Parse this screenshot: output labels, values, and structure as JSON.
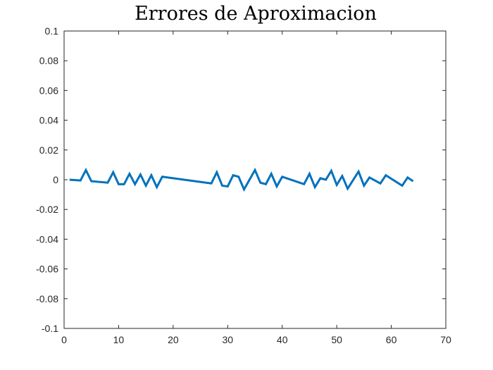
{
  "chart_data": {
    "type": "line",
    "title": "Errores de Aproximacion",
    "xlabel": "",
    "ylabel": "",
    "xlim": [
      0,
      70
    ],
    "ylim": [
      -0.1,
      0.1
    ],
    "x_ticks": [
      0,
      10,
      20,
      30,
      40,
      50,
      60,
      70
    ],
    "y_ticks": [
      0.1,
      0.08,
      0.06,
      0.04,
      0.02,
      0,
      -0.02,
      -0.04,
      -0.06,
      -0.08,
      -0.1
    ],
    "y_tick_labels": [
      "0.1",
      "0.08",
      "0.06",
      "0.04",
      "0.02",
      "0",
      "-0.02",
      "-0.04",
      "-0.06",
      "-0.08",
      "-0.1"
    ],
    "grid": false,
    "series": [
      {
        "color": "#0072BD",
        "points": [
          [
            1,
            0.0
          ],
          [
            3,
            -0.0005
          ],
          [
            4,
            0.0065
          ],
          [
            5,
            -0.001
          ],
          [
            8,
            -0.002
          ],
          [
            9,
            0.005
          ],
          [
            10,
            -0.003
          ],
          [
            11,
            -0.003
          ],
          [
            12,
            0.004
          ],
          [
            13,
            -0.003
          ],
          [
            14,
            0.0035
          ],
          [
            15,
            -0.004
          ],
          [
            16,
            0.003
          ],
          [
            17,
            -0.005
          ],
          [
            18,
            0.002
          ],
          [
            27,
            -0.0025
          ],
          [
            28,
            0.005
          ],
          [
            29,
            -0.004
          ],
          [
            30,
            -0.0045
          ],
          [
            31,
            0.003
          ],
          [
            32,
            0.002
          ],
          [
            33,
            -0.0065
          ],
          [
            35,
            0.0065
          ],
          [
            36,
            -0.002
          ],
          [
            37,
            -0.003
          ],
          [
            38,
            0.004
          ],
          [
            39,
            -0.0045
          ],
          [
            40,
            0.002
          ],
          [
            44,
            -0.003
          ],
          [
            45,
            0.004
          ],
          [
            46,
            -0.005
          ],
          [
            47,
            0.001
          ],
          [
            48,
            0.0
          ],
          [
            49,
            0.006
          ],
          [
            50,
            -0.0035
          ],
          [
            51,
            0.0025
          ],
          [
            52,
            -0.006
          ],
          [
            54,
            0.0055
          ],
          [
            55,
            -0.004
          ],
          [
            56,
            0.0015
          ],
          [
            58,
            -0.0025
          ],
          [
            59,
            0.003
          ],
          [
            62,
            -0.004
          ],
          [
            63,
            0.0015
          ],
          [
            64,
            -0.001
          ]
        ]
      }
    ]
  }
}
